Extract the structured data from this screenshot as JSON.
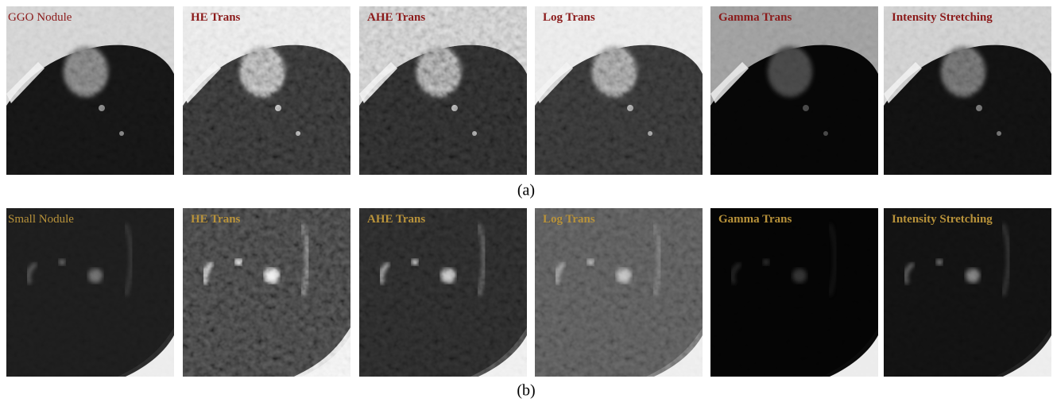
{
  "figure": {
    "rows": [
      {
        "caption": "(a)",
        "panels": [
          "GGO Nodule",
          "HE Trans",
          "AHE Trans",
          "Log Trans",
          "Gamma Trans",
          "Intensity Stretching"
        ]
      },
      {
        "caption": "(b)",
        "panels": [
          "Small Nodule",
          "HE Trans",
          "AHE Trans",
          "Log Trans",
          "Gamma Trans",
          "Intensity Stretching"
        ]
      }
    ]
  }
}
